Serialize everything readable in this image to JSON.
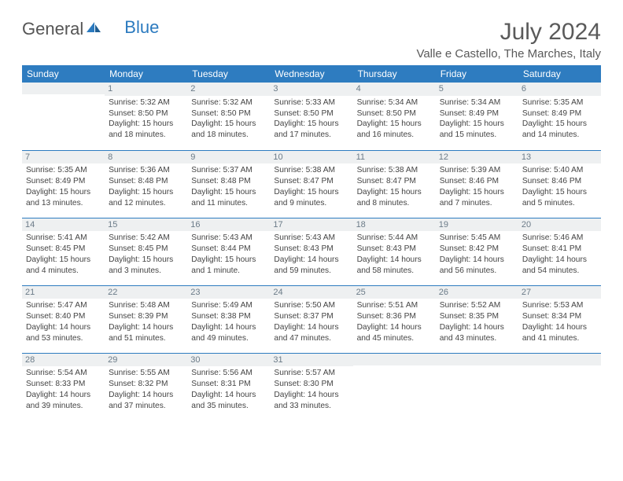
{
  "logo": {
    "text1": "General",
    "text2": "Blue"
  },
  "title": "July 2024",
  "location": "Valle e Castello, The Marches, Italy",
  "header_color": "#2e7cc0",
  "days": [
    "Sunday",
    "Monday",
    "Tuesday",
    "Wednesday",
    "Thursday",
    "Friday",
    "Saturday"
  ],
  "weeks": [
    [
      null,
      {
        "n": "1",
        "sr": "Sunrise: 5:32 AM",
        "ss": "Sunset: 8:50 PM",
        "d1": "Daylight: 15 hours",
        "d2": "and 18 minutes."
      },
      {
        "n": "2",
        "sr": "Sunrise: 5:32 AM",
        "ss": "Sunset: 8:50 PM",
        "d1": "Daylight: 15 hours",
        "d2": "and 18 minutes."
      },
      {
        "n": "3",
        "sr": "Sunrise: 5:33 AM",
        "ss": "Sunset: 8:50 PM",
        "d1": "Daylight: 15 hours",
        "d2": "and 17 minutes."
      },
      {
        "n": "4",
        "sr": "Sunrise: 5:34 AM",
        "ss": "Sunset: 8:50 PM",
        "d1": "Daylight: 15 hours",
        "d2": "and 16 minutes."
      },
      {
        "n": "5",
        "sr": "Sunrise: 5:34 AM",
        "ss": "Sunset: 8:49 PM",
        "d1": "Daylight: 15 hours",
        "d2": "and 15 minutes."
      },
      {
        "n": "6",
        "sr": "Sunrise: 5:35 AM",
        "ss": "Sunset: 8:49 PM",
        "d1": "Daylight: 15 hours",
        "d2": "and 14 minutes."
      }
    ],
    [
      {
        "n": "7",
        "sr": "Sunrise: 5:35 AM",
        "ss": "Sunset: 8:49 PM",
        "d1": "Daylight: 15 hours",
        "d2": "and 13 minutes."
      },
      {
        "n": "8",
        "sr": "Sunrise: 5:36 AM",
        "ss": "Sunset: 8:48 PM",
        "d1": "Daylight: 15 hours",
        "d2": "and 12 minutes."
      },
      {
        "n": "9",
        "sr": "Sunrise: 5:37 AM",
        "ss": "Sunset: 8:48 PM",
        "d1": "Daylight: 15 hours",
        "d2": "and 11 minutes."
      },
      {
        "n": "10",
        "sr": "Sunrise: 5:38 AM",
        "ss": "Sunset: 8:47 PM",
        "d1": "Daylight: 15 hours",
        "d2": "and 9 minutes."
      },
      {
        "n": "11",
        "sr": "Sunrise: 5:38 AM",
        "ss": "Sunset: 8:47 PM",
        "d1": "Daylight: 15 hours",
        "d2": "and 8 minutes."
      },
      {
        "n": "12",
        "sr": "Sunrise: 5:39 AM",
        "ss": "Sunset: 8:46 PM",
        "d1": "Daylight: 15 hours",
        "d2": "and 7 minutes."
      },
      {
        "n": "13",
        "sr": "Sunrise: 5:40 AM",
        "ss": "Sunset: 8:46 PM",
        "d1": "Daylight: 15 hours",
        "d2": "and 5 minutes."
      }
    ],
    [
      {
        "n": "14",
        "sr": "Sunrise: 5:41 AM",
        "ss": "Sunset: 8:45 PM",
        "d1": "Daylight: 15 hours",
        "d2": "and 4 minutes."
      },
      {
        "n": "15",
        "sr": "Sunrise: 5:42 AM",
        "ss": "Sunset: 8:45 PM",
        "d1": "Daylight: 15 hours",
        "d2": "and 3 minutes."
      },
      {
        "n": "16",
        "sr": "Sunrise: 5:43 AM",
        "ss": "Sunset: 8:44 PM",
        "d1": "Daylight: 15 hours",
        "d2": "and 1 minute."
      },
      {
        "n": "17",
        "sr": "Sunrise: 5:43 AM",
        "ss": "Sunset: 8:43 PM",
        "d1": "Daylight: 14 hours",
        "d2": "and 59 minutes."
      },
      {
        "n": "18",
        "sr": "Sunrise: 5:44 AM",
        "ss": "Sunset: 8:43 PM",
        "d1": "Daylight: 14 hours",
        "d2": "and 58 minutes."
      },
      {
        "n": "19",
        "sr": "Sunrise: 5:45 AM",
        "ss": "Sunset: 8:42 PM",
        "d1": "Daylight: 14 hours",
        "d2": "and 56 minutes."
      },
      {
        "n": "20",
        "sr": "Sunrise: 5:46 AM",
        "ss": "Sunset: 8:41 PM",
        "d1": "Daylight: 14 hours",
        "d2": "and 54 minutes."
      }
    ],
    [
      {
        "n": "21",
        "sr": "Sunrise: 5:47 AM",
        "ss": "Sunset: 8:40 PM",
        "d1": "Daylight: 14 hours",
        "d2": "and 53 minutes."
      },
      {
        "n": "22",
        "sr": "Sunrise: 5:48 AM",
        "ss": "Sunset: 8:39 PM",
        "d1": "Daylight: 14 hours",
        "d2": "and 51 minutes."
      },
      {
        "n": "23",
        "sr": "Sunrise: 5:49 AM",
        "ss": "Sunset: 8:38 PM",
        "d1": "Daylight: 14 hours",
        "d2": "and 49 minutes."
      },
      {
        "n": "24",
        "sr": "Sunrise: 5:50 AM",
        "ss": "Sunset: 8:37 PM",
        "d1": "Daylight: 14 hours",
        "d2": "and 47 minutes."
      },
      {
        "n": "25",
        "sr": "Sunrise: 5:51 AM",
        "ss": "Sunset: 8:36 PM",
        "d1": "Daylight: 14 hours",
        "d2": "and 45 minutes."
      },
      {
        "n": "26",
        "sr": "Sunrise: 5:52 AM",
        "ss": "Sunset: 8:35 PM",
        "d1": "Daylight: 14 hours",
        "d2": "and 43 minutes."
      },
      {
        "n": "27",
        "sr": "Sunrise: 5:53 AM",
        "ss": "Sunset: 8:34 PM",
        "d1": "Daylight: 14 hours",
        "d2": "and 41 minutes."
      }
    ],
    [
      {
        "n": "28",
        "sr": "Sunrise: 5:54 AM",
        "ss": "Sunset: 8:33 PM",
        "d1": "Daylight: 14 hours",
        "d2": "and 39 minutes."
      },
      {
        "n": "29",
        "sr": "Sunrise: 5:55 AM",
        "ss": "Sunset: 8:32 PM",
        "d1": "Daylight: 14 hours",
        "d2": "and 37 minutes."
      },
      {
        "n": "30",
        "sr": "Sunrise: 5:56 AM",
        "ss": "Sunset: 8:31 PM",
        "d1": "Daylight: 14 hours",
        "d2": "and 35 minutes."
      },
      {
        "n": "31",
        "sr": "Sunrise: 5:57 AM",
        "ss": "Sunset: 8:30 PM",
        "d1": "Daylight: 14 hours",
        "d2": "and 33 minutes."
      },
      null,
      null,
      null
    ]
  ]
}
